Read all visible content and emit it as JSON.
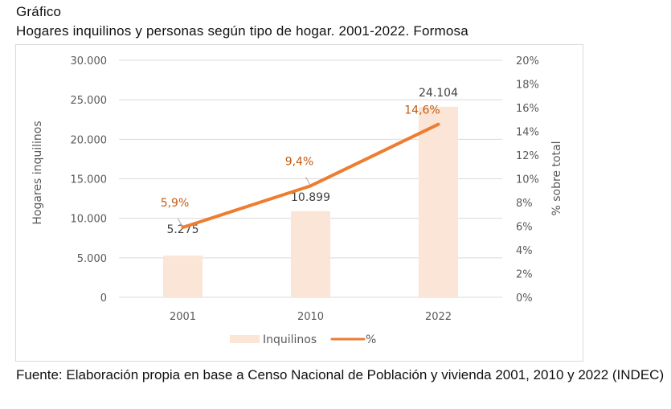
{
  "header": {
    "kicker": "Gráfico",
    "title": "Hogares inquilinos y personas según tipo de hogar. 2001-2022. Formosa"
  },
  "source": "Fuente: Elaboración propia en base a Censo Nacional de Población y vivienda 2001, 2010 y 2022 (INDEC)",
  "colors": {
    "bar": "#fbe5d6",
    "line": "#ed7d31",
    "pct_label": "#c55a11",
    "grid": "#d9d9d9",
    "tick": "#595959"
  },
  "chart_data": {
    "type": "bar",
    "title": "Hogares inquilinos y personas según tipo de hogar. 2001-2022. Formosa",
    "categories": [
      "2001",
      "2010",
      "2022"
    ],
    "series": [
      {
        "name": "Inquilinos",
        "type": "bar",
        "axis": "left",
        "values": [
          5275,
          10899,
          24104
        ],
        "labels": [
          "5.275",
          "10.899",
          "24.104"
        ]
      },
      {
        "name": "%",
        "type": "line",
        "axis": "right",
        "values": [
          5.9,
          9.4,
          14.6
        ],
        "labels": [
          "5,9%",
          "9,4%",
          "14,6%"
        ]
      }
    ],
    "ylabel": "Hogares inquilinos",
    "ylim": [
      0,
      30000
    ],
    "yticks": [
      0,
      5000,
      10000,
      15000,
      20000,
      25000,
      30000
    ],
    "ytick_labels": [
      "0",
      "5.000",
      "10.000",
      "15.000",
      "20.000",
      "25.000",
      "30.000"
    ],
    "y2label": "% sobre total",
    "y2lim": [
      0,
      20
    ],
    "y2ticks": [
      0,
      2,
      4,
      6,
      8,
      10,
      12,
      14,
      16,
      18,
      20
    ],
    "y2tick_labels": [
      "0%",
      "2%",
      "4%",
      "6%",
      "8%",
      "10%",
      "12%",
      "14%",
      "16%",
      "18%",
      "20%"
    ],
    "xlabel": "",
    "grid": true,
    "legend": {
      "position": "bottom",
      "entries": [
        "Inquilinos",
        "%"
      ]
    }
  }
}
